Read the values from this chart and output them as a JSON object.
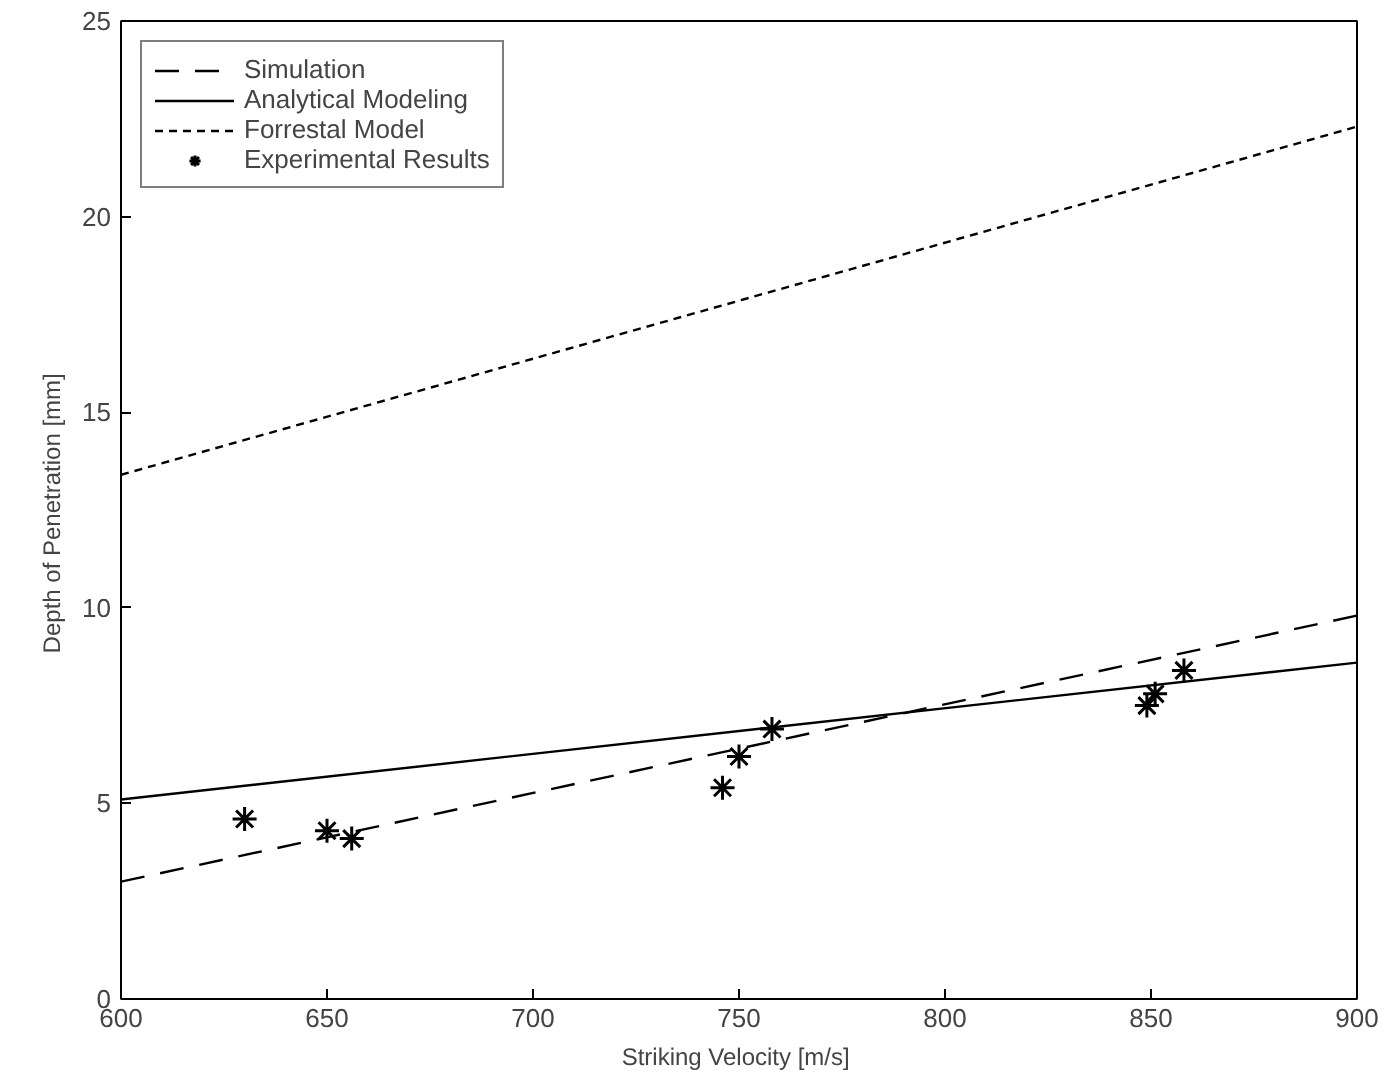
{
  "chart_data": {
    "type": "line",
    "xlabel": "Striking Velocity  [m/s]",
    "ylabel": "Depth of Penetration  [mm]",
    "xlim": [
      600,
      900
    ],
    "ylim": [
      0,
      25
    ],
    "xticks": [
      600,
      650,
      700,
      750,
      800,
      850,
      900
    ],
    "yticks": [
      0,
      5,
      10,
      15,
      20,
      25
    ],
    "grid": false,
    "legend": "top left",
    "series": [
      {
        "name": "Simulation",
        "color": "#000000",
        "line_style": "dashed",
        "x": [
          600,
          900
        ],
        "values": [
          3.0,
          9.8
        ]
      },
      {
        "name": "Analytical Modeling",
        "color": "#000000",
        "line_style": "solid",
        "x": [
          600,
          900
        ],
        "values": [
          5.1,
          8.6
        ]
      },
      {
        "name": "Forrestal Model",
        "color": "#000000",
        "line_style": "dotted",
        "x": [
          600,
          900
        ],
        "values": [
          13.4,
          22.3
        ]
      },
      {
        "name": "Experimental Results",
        "color": "#000000",
        "type": "scatter",
        "marker": "cross",
        "x": [
          630,
          650,
          656,
          746,
          750,
          758,
          849,
          851,
          858
        ],
        "values": [
          4.6,
          4.3,
          4.1,
          5.4,
          6.2,
          6.9,
          7.5,
          7.8,
          8.4
        ]
      }
    ]
  }
}
